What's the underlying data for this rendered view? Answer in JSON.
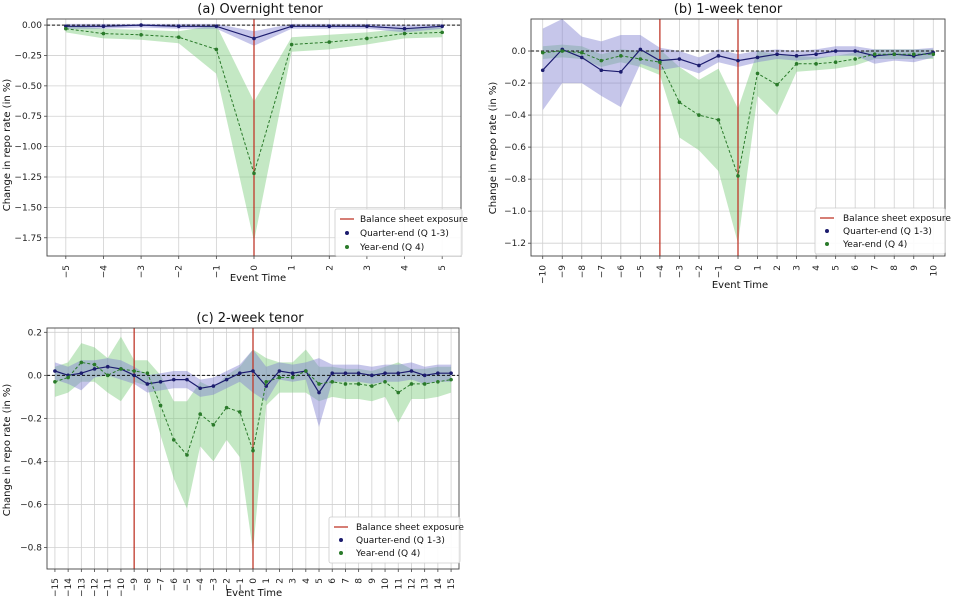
{
  "chart_data": [
    {
      "id": "a",
      "type": "line",
      "title": "(a) Overnight tenor",
      "xlabel": "Event Time",
      "ylabel": "Change in repo rate (in %)",
      "xlim": [
        -5.5,
        5.5
      ],
      "ylim": [
        -1.9,
        0.05
      ],
      "xticks": [
        -5,
        -4,
        -3,
        -2,
        -1,
        0,
        1,
        2,
        3,
        4,
        5
      ],
      "xtick_labels": [
        "−5",
        "−4",
        "−3",
        "−2",
        "−1",
        "0",
        "1",
        "2",
        "3",
        "4",
        "5"
      ],
      "yticks": [
        0.0,
        -0.25,
        -0.5,
        -0.75,
        -1.0,
        -1.25,
        -1.5,
        -1.75
      ],
      "ytick_labels": [
        "0.00",
        "−0.25",
        "−0.50",
        "−0.75",
        "−1.00",
        "−1.25",
        "−1.50",
        "−1.75"
      ],
      "exposure_lines": [
        0
      ],
      "legend": [
        "Balance sheet exposure",
        "Quarter-end (Q 1-3)",
        "Year-end (Q 4)"
      ],
      "series": [
        {
          "name": "Quarter-end (Q 1-3)",
          "color": "#1c1c6e",
          "band_color": "#8080d0",
          "x": [
            -5,
            -4,
            -3,
            -2,
            -1,
            0,
            1,
            2,
            3,
            4,
            5
          ],
          "values": [
            -0.01,
            -0.01,
            0.0,
            -0.01,
            -0.01,
            -0.11,
            -0.01,
            -0.01,
            -0.01,
            -0.03,
            -0.01
          ],
          "lower": [
            -0.03,
            -0.03,
            -0.02,
            -0.03,
            -0.03,
            -0.17,
            -0.03,
            -0.03,
            -0.03,
            -0.06,
            -0.03
          ],
          "upper": [
            0.01,
            0.01,
            0.01,
            0.01,
            0.01,
            -0.05,
            0.01,
            0.01,
            0.01,
            0.0,
            0.01
          ]
        },
        {
          "name": "Year-end (Q 4)",
          "color": "#2a7a2a",
          "band_color": "#7ccc7c",
          "x": [
            -5,
            -4,
            -3,
            -2,
            -1,
            0,
            1,
            2,
            3,
            4,
            5
          ],
          "values": [
            -0.03,
            -0.07,
            -0.08,
            -0.1,
            -0.2,
            -1.22,
            -0.16,
            -0.14,
            -0.11,
            -0.07,
            -0.06
          ],
          "lower": [
            -0.06,
            -0.11,
            -0.12,
            -0.15,
            -0.4,
            -1.78,
            -0.22,
            -0.2,
            -0.16,
            -0.11,
            -0.1
          ],
          "upper": [
            0.0,
            -0.03,
            -0.04,
            -0.05,
            0.0,
            -0.63,
            -0.1,
            -0.08,
            -0.06,
            -0.03,
            -0.02
          ]
        }
      ]
    },
    {
      "id": "b",
      "type": "line",
      "title": "(b) 1-week tenor",
      "xlabel": "Event Time",
      "ylabel": "Change in repo rate (in %)",
      "xlim": [
        -10.6,
        10.6
      ],
      "ylim": [
        -1.28,
        0.2
      ],
      "xticks": [
        -10,
        -9,
        -8,
        -7,
        -6,
        -5,
        -4,
        -3,
        -2,
        -1,
        0,
        1,
        2,
        3,
        4,
        5,
        6,
        7,
        8,
        9,
        10
      ],
      "xtick_labels": [
        "−10",
        "−9",
        "−8",
        "−7",
        "−6",
        "−5",
        "−4",
        "−3",
        "−2",
        "−1",
        "0",
        "1",
        "2",
        "3",
        "4",
        "5",
        "6",
        "7",
        "8",
        "9",
        "10"
      ],
      "yticks": [
        0.0,
        -0.2,
        -0.4,
        -0.6,
        -0.8,
        -1.0,
        -1.2
      ],
      "ytick_labels": [
        "0.0",
        "−0.2",
        "−0.4",
        "−0.6",
        "−0.8",
        "−1.0",
        "−1.2"
      ],
      "exposure_lines": [
        -4,
        0
      ],
      "legend": [
        "Balance sheet exposure",
        "Quarter-end (Q 1-3)",
        "Year-end (Q 4)"
      ],
      "series": [
        {
          "name": "Quarter-end (Q 1-3)",
          "color": "#1c1c6e",
          "band_color": "#8080d0",
          "x": [
            -10,
            -9,
            -8,
            -7,
            -6,
            -5,
            -4,
            -3,
            -2,
            -1,
            0,
            1,
            2,
            3,
            4,
            5,
            6,
            7,
            8,
            9,
            10
          ],
          "values": [
            -0.12,
            0.01,
            -0.04,
            -0.12,
            -0.13,
            0.01,
            -0.06,
            -0.05,
            -0.09,
            -0.03,
            -0.06,
            -0.04,
            -0.02,
            -0.03,
            -0.02,
            0.0,
            0.0,
            -0.03,
            -0.02,
            -0.03,
            -0.01
          ],
          "lower": [
            -0.37,
            -0.2,
            -0.2,
            -0.28,
            -0.35,
            -0.08,
            -0.12,
            -0.1,
            -0.14,
            -0.07,
            -0.1,
            -0.07,
            -0.05,
            -0.06,
            -0.05,
            -0.03,
            -0.03,
            -0.08,
            -0.06,
            -0.07,
            -0.04
          ],
          "upper": [
            0.14,
            0.2,
            0.09,
            0.06,
            0.1,
            0.1,
            0.02,
            0.0,
            -0.04,
            0.01,
            -0.02,
            0.0,
            0.01,
            0.0,
            0.01,
            0.03,
            0.03,
            0.01,
            0.01,
            0.01,
            0.02
          ]
        },
        {
          "name": "Year-end (Q 4)",
          "color": "#2a7a2a",
          "band_color": "#7ccc7c",
          "x": [
            -10,
            -9,
            -8,
            -7,
            -6,
            -5,
            -4,
            -3,
            -2,
            -1,
            0,
            1,
            2,
            3,
            4,
            5,
            6,
            7,
            8,
            9,
            10
          ],
          "values": [
            -0.01,
            0.0,
            -0.01,
            -0.06,
            -0.03,
            -0.05,
            -0.07,
            -0.32,
            -0.4,
            -0.43,
            -0.78,
            -0.14,
            -0.21,
            -0.08,
            -0.08,
            -0.07,
            -0.05,
            -0.02,
            -0.02,
            -0.02,
            -0.02
          ],
          "lower": [
            -0.05,
            -0.04,
            -0.05,
            -0.1,
            -0.07,
            -0.1,
            -0.15,
            -0.54,
            -0.62,
            -0.75,
            -1.2,
            -0.28,
            -0.4,
            -0.13,
            -0.12,
            -0.11,
            -0.09,
            -0.05,
            -0.05,
            -0.05,
            -0.05
          ],
          "upper": [
            0.03,
            0.04,
            0.03,
            -0.02,
            0.01,
            0.0,
            0.01,
            -0.1,
            -0.18,
            -0.11,
            -0.36,
            0.0,
            -0.02,
            -0.03,
            -0.04,
            -0.03,
            -0.01,
            0.01,
            0.01,
            0.01,
            0.01
          ]
        }
      ]
    },
    {
      "id": "c",
      "type": "line",
      "title": "(c) 2-week tenor",
      "xlabel": "Event Time",
      "ylabel": "Change in repo rate (in %)",
      "xlim": [
        -15.6,
        15.6
      ],
      "ylim": [
        -0.9,
        0.22
      ],
      "xticks": [
        -15,
        -14,
        -13,
        -12,
        -11,
        -10,
        -9,
        -8,
        -7,
        -6,
        -5,
        -4,
        -3,
        -2,
        -1,
        0,
        1,
        2,
        3,
        4,
        5,
        6,
        7,
        8,
        9,
        10,
        11,
        12,
        13,
        14,
        15
      ],
      "xtick_labels": [
        "−15",
        "−14",
        "−13",
        "−12",
        "−11",
        "−10",
        "−9",
        "−8",
        "−7",
        "−6",
        "−5",
        "−4",
        "−3",
        "−2",
        "−1",
        "0",
        "1",
        "2",
        "3",
        "4",
        "5",
        "6",
        "7",
        "8",
        "9",
        "10",
        "11",
        "12",
        "13",
        "14",
        "15"
      ],
      "yticks": [
        0.2,
        0.0,
        -0.2,
        -0.4,
        -0.6,
        -0.8
      ],
      "ytick_labels": [
        "0.2",
        "0.0",
        "−0.2",
        "−0.4",
        "−0.6",
        "−0.8"
      ],
      "exposure_lines": [
        -9,
        0
      ],
      "legend": [
        "Balance sheet exposure",
        "Quarter-end (Q 1-3)",
        "Year-end (Q 4)"
      ],
      "series": [
        {
          "name": "Quarter-end (Q 1-3)",
          "color": "#1c1c6e",
          "band_color": "#8080d0",
          "x": [
            -15,
            -14,
            -13,
            -12,
            -11,
            -10,
            -9,
            -8,
            -7,
            -6,
            -5,
            -4,
            -3,
            -2,
            -1,
            0,
            1,
            2,
            3,
            4,
            5,
            6,
            7,
            8,
            9,
            10,
            11,
            12,
            13,
            14,
            15
          ],
          "values": [
            0.02,
            0.0,
            0.01,
            0.03,
            0.04,
            0.03,
            0.0,
            -0.04,
            -0.03,
            -0.02,
            -0.02,
            -0.06,
            -0.05,
            -0.02,
            0.01,
            0.02,
            -0.05,
            0.02,
            0.01,
            0.02,
            -0.08,
            0.01,
            0.01,
            0.01,
            0.0,
            0.01,
            0.01,
            0.02,
            0.0,
            0.01,
            0.01
          ],
          "lower": [
            -0.02,
            -0.04,
            -0.07,
            -0.01,
            0.0,
            -0.02,
            -0.04,
            -0.08,
            -0.07,
            -0.06,
            -0.06,
            -0.1,
            -0.09,
            -0.06,
            -0.03,
            -0.08,
            -0.12,
            -0.02,
            -0.03,
            -0.02,
            -0.24,
            -0.03,
            -0.03,
            -0.03,
            -0.04,
            -0.03,
            -0.03,
            -0.02,
            -0.04,
            -0.03,
            -0.03
          ],
          "upper": [
            0.06,
            0.04,
            0.07,
            0.07,
            0.08,
            0.07,
            0.04,
            0.0,
            0.01,
            0.02,
            0.02,
            -0.02,
            -0.01,
            0.02,
            0.05,
            0.12,
            0.04,
            0.06,
            0.05,
            0.06,
            0.08,
            0.05,
            0.05,
            0.05,
            0.04,
            0.05,
            0.05,
            0.06,
            0.04,
            0.05,
            0.05
          ]
        },
        {
          "name": "Year-end (Q 4)",
          "color": "#2a7a2a",
          "band_color": "#7ccc7c",
          "x": [
            -15,
            -14,
            -13,
            -12,
            -11,
            -10,
            -9,
            -8,
            -7,
            -6,
            -5,
            -4,
            -3,
            -2,
            -1,
            0,
            1,
            2,
            3,
            4,
            5,
            6,
            7,
            8,
            9,
            10,
            11,
            12,
            13,
            14,
            15
          ],
          "values": [
            -0.03,
            -0.01,
            0.06,
            0.05,
            0.0,
            0.03,
            0.02,
            0.01,
            -0.14,
            -0.3,
            -0.37,
            -0.18,
            -0.23,
            -0.15,
            -0.17,
            -0.35,
            -0.03,
            -0.01,
            -0.01,
            0.02,
            -0.04,
            -0.03,
            -0.04,
            -0.04,
            -0.05,
            -0.03,
            -0.08,
            -0.04,
            -0.04,
            -0.03,
            -0.02
          ],
          "lower": [
            -0.1,
            -0.08,
            -0.03,
            -0.03,
            -0.08,
            -0.12,
            -0.03,
            -0.05,
            -0.28,
            -0.48,
            -0.62,
            -0.33,
            -0.4,
            -0.3,
            -0.38,
            -0.82,
            -0.14,
            -0.08,
            -0.08,
            -0.08,
            -0.12,
            -0.1,
            -0.11,
            -0.11,
            -0.12,
            -0.1,
            -0.22,
            -0.11,
            -0.11,
            -0.1,
            -0.08
          ],
          "upper": [
            0.04,
            0.06,
            0.15,
            0.13,
            0.08,
            0.18,
            0.07,
            0.07,
            0.0,
            -0.12,
            -0.12,
            -0.03,
            -0.06,
            0.0,
            0.04,
            0.12,
            0.08,
            0.06,
            0.06,
            0.12,
            0.04,
            0.04,
            0.03,
            0.03,
            0.02,
            0.04,
            0.06,
            0.03,
            0.03,
            0.04,
            0.04
          ]
        }
      ]
    }
  ]
}
